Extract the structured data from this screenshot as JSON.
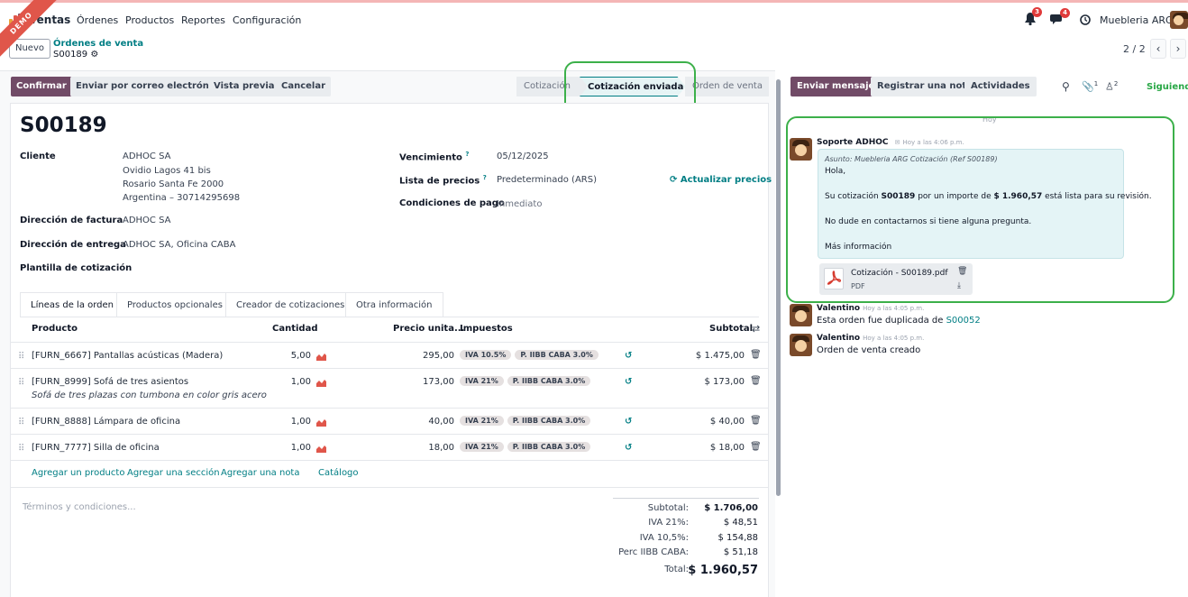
{
  "nav": {
    "demo": "DEMO",
    "app": "Ventas",
    "menus": [
      "Órdenes",
      "Productos",
      "Reportes",
      "Configuración"
    ],
    "activity_badge": "3",
    "message_badge": "4",
    "company": "Muebleria ARG"
  },
  "control": {
    "new": "Nuevo",
    "breadcrumb": "Órdenes de venta",
    "record": "S00189",
    "pager": "2 / 2"
  },
  "actions": {
    "confirm": "Confirmar",
    "send_email": "Enviar por correo electrónico",
    "preview": "Vista previa",
    "cancel": "Cancelar"
  },
  "status": {
    "steps": [
      "Cotización",
      "Cotización enviada",
      "Orden de venta"
    ],
    "active_index": 1
  },
  "form": {
    "title": "S00189",
    "customer_label": "Cliente",
    "customer_lines": [
      "ADHOC SA",
      "Ovidio Lagos 41 bis",
      "Rosario Santa Fe 2000",
      "Argentina – 30714295698"
    ],
    "invoice_label": "Dirección de factura",
    "invoice_value": "ADHOC SA",
    "delivery_label": "Dirección de entrega",
    "delivery_value": "ADHOC SA, Oficina CABA",
    "template_label": "Plantilla de cotización",
    "expiry_label": "Vencimiento",
    "expiry_value": "05/12/2025",
    "pricelist_label": "Lista de precios",
    "pricelist_value": "Predeterminado (ARS)",
    "update_prices": "Actualizar precios",
    "payment_label": "Condiciones de pago",
    "payment_value": "Inmediato",
    "help_mark": "?"
  },
  "tabs": [
    "Líneas de la orden",
    "Productos opcionales",
    "Creador de cotizaciones",
    "Otra información"
  ],
  "table": {
    "headers": {
      "product": "Producto",
      "qty": "Cantidad",
      "price": "Precio unita...",
      "taxes": "Impuestos",
      "subtotal": "Subtotal"
    },
    "rows": [
      {
        "product": "[FURN_6667] Pantallas acústicas (Madera)",
        "desc": "",
        "qty": "5,00",
        "price": "295,00",
        "taxes": [
          "IVA 10.5%",
          "P. IIBB CABA 3.0%"
        ],
        "subtotal": "$ 1.475,00"
      },
      {
        "product": "[FURN_8999] Sofá de tres asientos",
        "desc": "Sofá de tres plazas con tumbona en color gris acero",
        "qty": "1,00",
        "price": "173,00",
        "taxes": [
          "IVA 21%",
          "P. IIBB CABA 3.0%"
        ],
        "subtotal": "$ 173,00"
      },
      {
        "product": "[FURN_8888] Lámpara de oficina",
        "desc": "",
        "qty": "1,00",
        "price": "40,00",
        "taxes": [
          "IVA 21%",
          "P. IIBB CABA 3.0%"
        ],
        "subtotal": "$ 40,00"
      },
      {
        "product": "[FURN_7777] Silla de oficina",
        "desc": "",
        "qty": "1,00",
        "price": "18,00",
        "taxes": [
          "IVA 21%",
          "P. IIBB CABA 3.0%"
        ],
        "subtotal": "$ 18,00"
      }
    ],
    "add_product": "Agregar un producto",
    "add_section": "Agregar una sección",
    "add_note": "Agregar una nota",
    "catalog": "Catálogo"
  },
  "terms_placeholder": "Términos y condiciones...",
  "totals": [
    {
      "label": "Subtotal:",
      "value": "$ 1.706,00"
    },
    {
      "label": "IVA 21%:",
      "value": "$ 48,51"
    },
    {
      "label": "IVA 10,5%:",
      "value": "$ 154,88"
    },
    {
      "label": "Perc IIBB CABA:",
      "value": "$ 51,18"
    },
    {
      "label": "Total:",
      "value": "$ 1.960,57"
    }
  ],
  "chatter": {
    "send_message": "Enviar mensaje",
    "log_note": "Registrar una nota",
    "activities": "Actividades",
    "attachments_count": "1",
    "followers_count": "2",
    "following": "Siguiendo",
    "date_sep": "Hoy",
    "messages": [
      {
        "author": "Soporte ADHOC",
        "time": "Hoy a las 4:06 p.m.",
        "subject": "Asunto: Muebleria ARG Cotización (Ref S00189)",
        "greeting": "Hola,",
        "body_pre": "Su cotización ",
        "body_ref": "S00189",
        "body_mid": " por un importe de ",
        "body_amount": "$ 1.960,57",
        "body_post": " está lista para su revisión.",
        "contact": "No dude en contactarnos si tiene alguna pregunta.",
        "more": "Más información",
        "attachment_name": "Cotización - S00189.pdf",
        "attachment_type": "PDF"
      },
      {
        "author": "Valentino",
        "time": "Hoy a las 4:05 p.m.",
        "body": "Esta orden fue duplicada de ",
        "link": "S00052"
      },
      {
        "author": "Valentino",
        "time": "Hoy a las 4:05 p.m.",
        "body": "Orden de venta creado"
      }
    ]
  },
  "colors": {
    "primary": "#714b67",
    "link": "#017e84",
    "highlight": "#3cb04a",
    "badge": "#e03a3a"
  }
}
